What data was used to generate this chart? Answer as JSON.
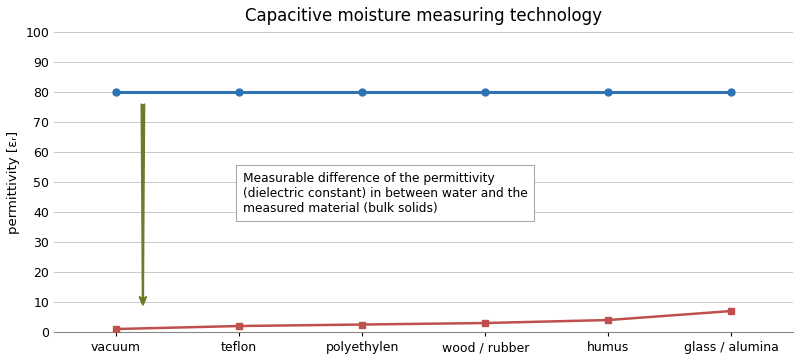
{
  "title": "Capacitive moisture measuring technology",
  "categories": [
    "vacuum",
    "teflon",
    "polyethylen",
    "wood / rubber",
    "humus",
    "glass / alumina"
  ],
  "water_values": [
    80,
    80,
    80,
    80,
    80,
    80
  ],
  "material_values": [
    1,
    2,
    2.5,
    3,
    4,
    7
  ],
  "water_color": "#2E74B5",
  "material_color": "#C0504D",
  "ylabel": "permittivity [εᵣ]",
  "ylim": [
    0,
    100
  ],
  "yticks": [
    0,
    10,
    20,
    30,
    40,
    50,
    60,
    70,
    80,
    90,
    100
  ],
  "annotation_text": "Measurable difference of the permittivity\n(dielectric constant) in between water and the\nmeasured material (bulk solids)",
  "arrow_color": "#6B7C29",
  "background_color": "#FFFFFF",
  "grid_color": "#C8C8C8",
  "title_fontsize": 12,
  "label_fontsize": 9.5,
  "tick_fontsize": 9
}
